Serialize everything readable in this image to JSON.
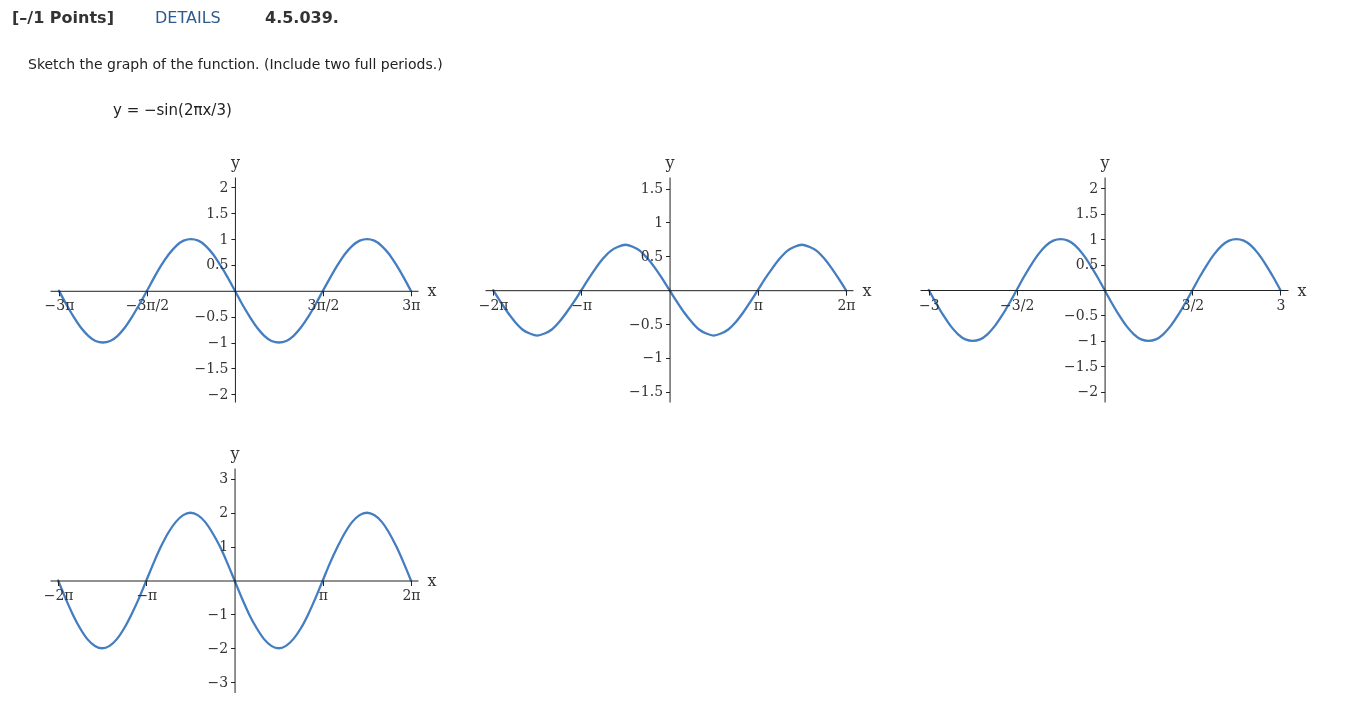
{
  "chart_data": [
    {
      "type": "other",
      "title": "Sketch the graph of the function. (Include two full periods.)",
      "subtitle": "y = −sin(2πx/3)",
      "annotations": [
        "[–/1 Points]",
        "DETAILS",
        "4.5.039."
      ]
    },
    {
      "type": "line",
      "xlabel": "x",
      "ylabel": "y",
      "xlim": [
        -9.9,
        9.8
      ],
      "ylim": [
        -2.15,
        2.2
      ],
      "xticks": [
        {
          "value": -9.42,
          "label": "−3π"
        },
        {
          "value": -4.71,
          "label": "−3π/2"
        },
        {
          "value": 4.71,
          "label": "3π/2"
        },
        {
          "value": 9.42,
          "label": "3π"
        }
      ],
      "yticks": [
        -2,
        -1.5,
        -1,
        -0.5,
        0.5,
        1,
        1.5,
        2
      ],
      "x": [
        -9.42,
        -9.03,
        -8.64,
        -8.25,
        -7.85,
        -7.46,
        -7.07,
        -6.68,
        -6.28,
        -5.89,
        -5.5,
        -5.11,
        -4.71,
        -4.32,
        -3.93,
        -3.53,
        -3.14,
        -2.75,
        -2.36,
        -1.96,
        -1.57,
        -1.18,
        -0.79,
        -0.39,
        0,
        0.39,
        0.79,
        1.18,
        1.57,
        1.96,
        2.36,
        2.75,
        3.14,
        3.53,
        3.93,
        4.32,
        4.71,
        5.11,
        5.5,
        5.89,
        6.28,
        6.68,
        7.07,
        7.46,
        7.85,
        8.25,
        8.64,
        9.03,
        9.42
      ],
      "series": [
        {
          "color": "#447dc0",
          "values": [
            0,
            -0.26,
            -0.5,
            -0.71,
            -0.87,
            -0.97,
            -1,
            -0.97,
            -0.87,
            -0.71,
            -0.5,
            -0.26,
            0,
            0.26,
            0.5,
            0.71,
            0.87,
            0.97,
            1,
            0.97,
            0.87,
            0.71,
            0.5,
            0.26,
            0,
            -0.26,
            -0.5,
            -0.71,
            -0.87,
            -0.97,
            -1,
            -0.97,
            -0.87,
            -0.71,
            -0.5,
            -0.26,
            0,
            0.26,
            0.5,
            0.71,
            0.87,
            0.97,
            1,
            0.97,
            0.87,
            0.71,
            0.5,
            0.26,
            0
          ]
        }
      ]
    },
    {
      "type": "line",
      "xlabel": "x",
      "ylabel": "y",
      "xlim": [
        -6.57,
        6.53
      ],
      "ylim": [
        -1.65,
        1.67
      ],
      "xticks": [
        {
          "value": -6.28,
          "label": "−2π"
        },
        {
          "value": -3.14,
          "label": "−π"
        },
        {
          "value": 3.14,
          "label": "π"
        },
        {
          "value": 6.28,
          "label": "2π"
        }
      ],
      "yticks": [
        -1.5,
        -1,
        -0.5,
        0.5,
        1,
        1.5
      ],
      "x": [
        -6.28,
        -6.02,
        -5.76,
        -5.5,
        -5.24,
        -4.97,
        -4.71,
        -4.45,
        -4.19,
        -3.93,
        -3.67,
        -3.4,
        -3.14,
        -2.88,
        -2.62,
        -2.36,
        -2.09,
        -1.83,
        -1.57,
        -1.31,
        -1.05,
        -0.79,
        -0.52,
        -0.26,
        0,
        0.26,
        0.52,
        0.79,
        1.05,
        1.31,
        1.57,
        1.83,
        2.09,
        2.36,
        2.62,
        2.88,
        3.14,
        3.4,
        3.67,
        3.93,
        4.19,
        4.45,
        4.71,
        4.97,
        5.24,
        5.5,
        5.76,
        6.02,
        6.28
      ],
      "series": [
        {
          "color": "#447dc0",
          "values": [
            0,
            -0.17,
            -0.33,
            -0.47,
            -0.58,
            -0.64,
            -0.67,
            -0.64,
            -0.58,
            -0.47,
            -0.33,
            -0.17,
            0,
            0.17,
            0.33,
            0.47,
            0.58,
            0.64,
            0.67,
            0.64,
            0.58,
            0.47,
            0.33,
            0.17,
            0,
            -0.17,
            -0.33,
            -0.47,
            -0.58,
            -0.64,
            -0.67,
            -0.64,
            -0.58,
            -0.47,
            -0.33,
            -0.17,
            0,
            0.17,
            0.33,
            0.47,
            0.58,
            0.64,
            0.67,
            0.64,
            0.58,
            0.47,
            0.33,
            0.17,
            0
          ]
        }
      ]
    },
    {
      "type": "line",
      "xlabel": "x",
      "ylabel": "y",
      "xlim": [
        -3.15,
        3.13
      ],
      "ylim": [
        -2.2,
        2.22
      ],
      "xticks": [
        -3,
        {
          "value": -1.5,
          "label": "−3/2"
        },
        {
          "value": 1.5,
          "label": "3/2"
        },
        3
      ],
      "yticks": [
        -2,
        -1.5,
        -1,
        -0.5,
        0.5,
        1,
        1.5,
        2
      ],
      "x": [
        -3,
        -2.875,
        -2.75,
        -2.625,
        -2.5,
        -2.375,
        -2.25,
        -2.125,
        -2,
        -1.875,
        -1.75,
        -1.625,
        -1.5,
        -1.375,
        -1.25,
        -1.125,
        -1,
        -0.875,
        -0.75,
        -0.625,
        -0.5,
        -0.375,
        -0.25,
        -0.125,
        0,
        0.125,
        0.25,
        0.375,
        0.5,
        0.625,
        0.75,
        0.875,
        1,
        1.125,
        1.25,
        1.375,
        1.5,
        1.625,
        1.75,
        1.875,
        2,
        2.125,
        2.25,
        2.375,
        2.5,
        2.625,
        2.75,
        2.875,
        3
      ],
      "series": [
        {
          "color": "#447dc0",
          "values": [
            0,
            -0.26,
            -0.5,
            -0.71,
            -0.87,
            -0.97,
            -1,
            -0.97,
            -0.87,
            -0.71,
            -0.5,
            -0.26,
            0,
            0.26,
            0.5,
            0.71,
            0.87,
            0.97,
            1,
            0.97,
            0.87,
            0.71,
            0.5,
            0.26,
            0,
            -0.26,
            -0.5,
            -0.71,
            -0.87,
            -0.97,
            -1,
            -0.97,
            -0.87,
            -0.71,
            -0.5,
            -0.26,
            0,
            0.26,
            0.5,
            0.71,
            0.87,
            0.97,
            1,
            0.97,
            0.87,
            0.71,
            0.5,
            0.26,
            0
          ]
        }
      ]
    },
    {
      "type": "line",
      "xlabel": "x",
      "ylabel": "y",
      "xlim": [
        -6.57,
        6.53
      ],
      "ylim": [
        -3.32,
        3.32
      ],
      "xticks": [
        {
          "value": -6.28,
          "label": "−2π"
        },
        {
          "value": -3.14,
          "label": "−π"
        },
        {
          "value": 3.14,
          "label": "π"
        },
        {
          "value": 6.28,
          "label": "2π"
        }
      ],
      "yticks": [
        -3,
        -2,
        -1,
        1,
        2,
        3
      ],
      "x": [
        -6.28,
        -6.02,
        -5.76,
        -5.5,
        -5.24,
        -4.97,
        -4.71,
        -4.45,
        -4.19,
        -3.93,
        -3.67,
        -3.4,
        -3.14,
        -2.88,
        -2.62,
        -2.36,
        -2.09,
        -1.83,
        -1.57,
        -1.31,
        -1.05,
        -0.79,
        -0.52,
        -0.26,
        0,
        0.26,
        0.52,
        0.79,
        1.05,
        1.31,
        1.57,
        1.83,
        2.09,
        2.36,
        2.62,
        2.88,
        3.14,
        3.4,
        3.67,
        3.93,
        4.19,
        4.45,
        4.71,
        4.97,
        5.24,
        5.5,
        5.76,
        6.02,
        6.28
      ],
      "series": [
        {
          "color": "#447dc0",
          "values": [
            0,
            -0.52,
            -1,
            -1.41,
            -1.73,
            -1.93,
            -2,
            -1.93,
            -1.73,
            -1.41,
            -1,
            -0.52,
            0,
            0.52,
            1,
            1.41,
            1.73,
            1.93,
            2,
            1.93,
            1.73,
            1.41,
            1,
            0.52,
            0,
            -0.52,
            -1,
            -1.41,
            -1.73,
            -1.93,
            -2,
            -1.93,
            -1.73,
            -1.41,
            -1,
            -0.52,
            0,
            0.52,
            1,
            1.41,
            1.73,
            1.93,
            2,
            1.93,
            1.73,
            1.41,
            1,
            0.52,
            0
          ]
        }
      ]
    }
  ]
}
